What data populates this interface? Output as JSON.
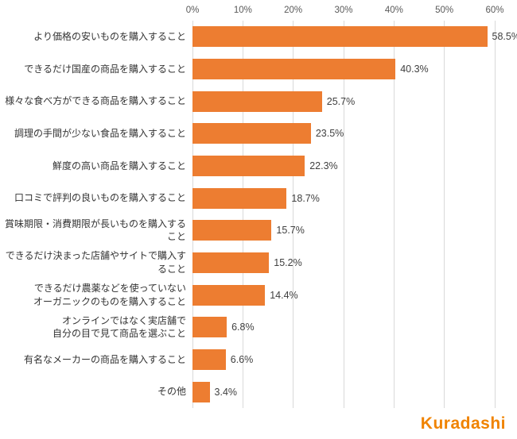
{
  "chart_data": {
    "type": "bar",
    "orientation": "horizontal",
    "title": "",
    "xlabel": "",
    "ylabel": "",
    "xlim": [
      0,
      60
    ],
    "x_ticks": [
      "0%",
      "10%",
      "20%",
      "30%",
      "40%",
      "50%",
      "60%"
    ],
    "grid": true,
    "bar_color": "#ED7D31",
    "categories": [
      "より価格の安いものを購入すること",
      "できるだけ国産の商品を購入すること",
      "様々な食べ方ができる商品を購入すること",
      "調理の手間が少ない食品を購入すること",
      "鮮度の高い商品を購入すること",
      "口コミで評判の良いものを購入すること",
      "賞味期限・消費期限が長いものを購入すること",
      "できるだけ決まった店舗やサイトで購入すること",
      "できるだけ農薬などを使っていない\nオーガニックのものを購入すること",
      "オンラインではなく実店舗で\n自分の目で見て商品を選ぶこと",
      "有名なメーカーの商品を購入すること",
      "その他"
    ],
    "values": [
      58.5,
      40.3,
      25.7,
      23.5,
      22.3,
      18.7,
      15.7,
      15.2,
      14.4,
      6.8,
      6.6,
      3.4
    ],
    "value_labels": [
      "58.5%",
      "40.3%",
      "25.7%",
      "23.5%",
      "22.3%",
      "18.7%",
      "15.7%",
      "15.2%",
      "14.4%",
      "6.8%",
      "6.6%",
      "3.4%"
    ],
    "legend": []
  },
  "footer": {
    "logo_text": "Kuradashi",
    "logo_color": "#F08300"
  }
}
